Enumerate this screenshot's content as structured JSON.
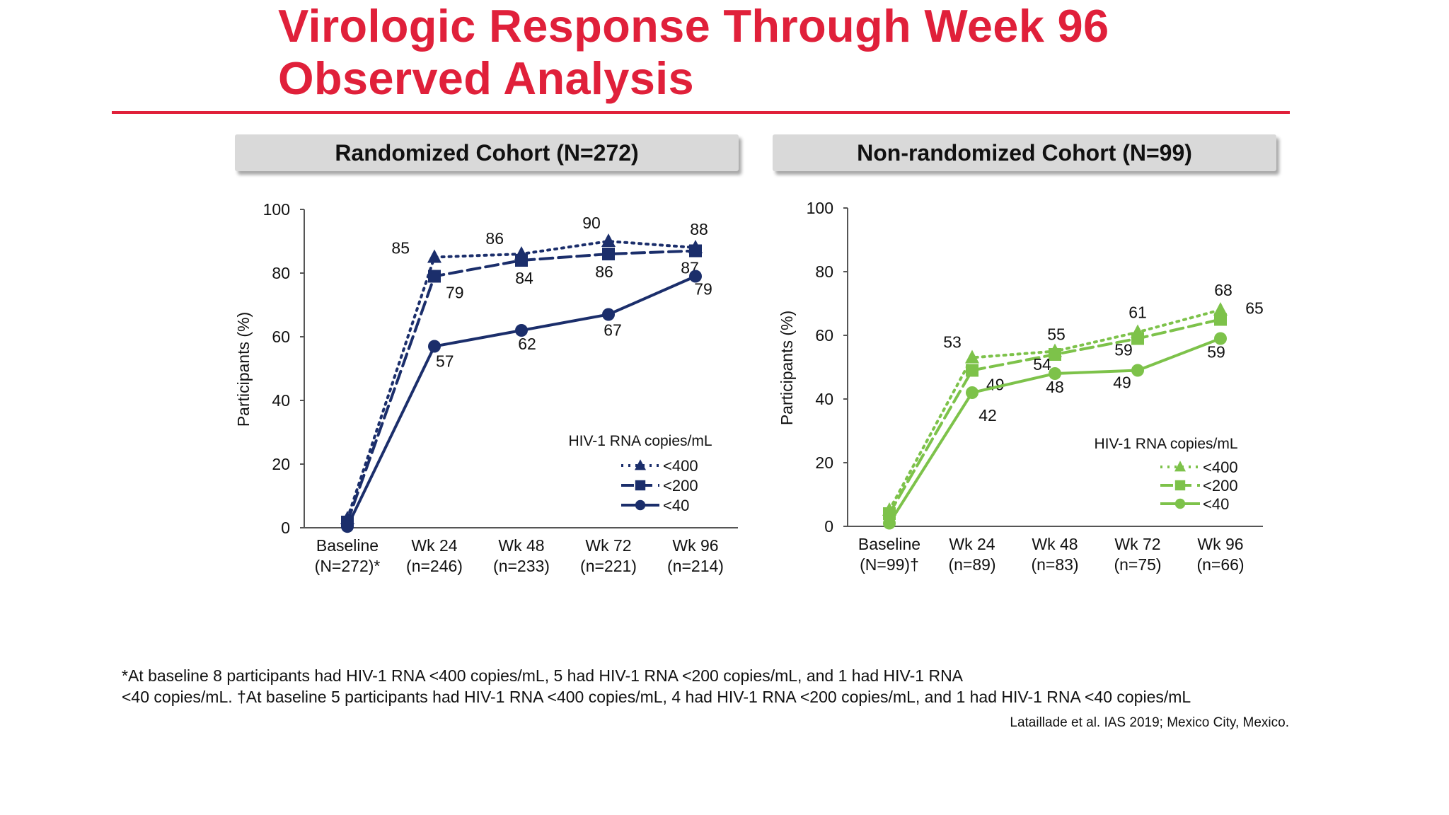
{
  "title": {
    "line1": "Virologic Response Through Week 96",
    "line2": "Observed Analysis"
  },
  "colors": {
    "title": "#e0203a",
    "navy": "#1b2e6b",
    "green": "#7dc24a",
    "panel_bg": "#d9d9d9"
  },
  "chart_data": [
    {
      "type": "line",
      "title": "Randomized Cohort (N=272)",
      "ylabel": "Participants (%)",
      "ylim": [
        0,
        100
      ],
      "yticks": [
        "0",
        "20",
        "40",
        "60",
        "80",
        "100"
      ],
      "categories": [
        {
          "line1": "Baseline",
          "line2": "(N=272)*"
        },
        {
          "line1": "Wk 24",
          "line2": "(n=246)"
        },
        {
          "line1": "Wk 48",
          "line2": "(n=233)"
        },
        {
          "line1": "Wk 72",
          "line2": "(n=221)"
        },
        {
          "line1": "Wk 96",
          "line2": "(n=214)"
        }
      ],
      "legend_title": "HIV-1 RNA copies/mL",
      "series": [
        {
          "name": "<400",
          "marker": "triangle",
          "dash": "dotted",
          "values": [
            2.9,
            85,
            86,
            90,
            88
          ],
          "labels": [
            "",
            "85",
            "86",
            "90",
            "88"
          ]
        },
        {
          "name": "<200",
          "marker": "square",
          "dash": "dashed",
          "values": [
            1.8,
            79,
            84,
            86,
            87
          ],
          "labels": [
            "",
            "79",
            "84",
            "86",
            "87"
          ]
        },
        {
          "name": "<40",
          "marker": "circle",
          "dash": "solid",
          "values": [
            0.4,
            57,
            62,
            67,
            79
          ],
          "labels": [
            "",
            "57",
            "62",
            "67",
            "79"
          ]
        }
      ]
    },
    {
      "type": "line",
      "title": "Non-randomized Cohort (N=99)",
      "ylabel": "Participants (%)",
      "ylim": [
        0,
        100
      ],
      "yticks": [
        "0",
        "20",
        "40",
        "60",
        "80",
        "100"
      ],
      "categories": [
        {
          "line1": "Baseline",
          "line2": "(N=99)†"
        },
        {
          "line1": "Wk 24",
          "line2": "(n=89)"
        },
        {
          "line1": "Wk 48",
          "line2": "(n=83)"
        },
        {
          "line1": "Wk 72",
          "line2": "(n=75)"
        },
        {
          "line1": "Wk 96",
          "line2": "(n=66)"
        }
      ],
      "legend_title": "HIV-1 RNA copies/mL",
      "series": [
        {
          "name": "<400",
          "marker": "triangle",
          "dash": "dotted",
          "values": [
            5.1,
            53,
            55,
            61,
            68
          ],
          "labels": [
            "",
            "53",
            "55",
            "61",
            "68"
          ]
        },
        {
          "name": "<200",
          "marker": "square",
          "dash": "dashed",
          "values": [
            4.0,
            49,
            54,
            59,
            65
          ],
          "labels": [
            "",
            "49",
            "54",
            "59",
            "65"
          ]
        },
        {
          "name": "<40",
          "marker": "circle",
          "dash": "solid",
          "values": [
            1.0,
            42,
            48,
            49,
            59
          ],
          "labels": [
            "",
            "42",
            "48",
            "49",
            "59"
          ]
        }
      ]
    }
  ],
  "footnote": {
    "line1": "*At baseline 8 participants had HIV-1 RNA <400 copies/mL, 5 had HIV-1 RNA <200 copies/mL, and 1 had HIV-1 RNA",
    "line2": "<40 copies/mL. †At baseline 5 participants had HIV-1 RNA <400 copies/mL, 4 had HIV-1 RNA <200 copies/mL, and 1 had HIV-1 RNA <40 copies/mL"
  },
  "citation": "Lataillade et al. IAS 2019; Mexico City, Mexico."
}
